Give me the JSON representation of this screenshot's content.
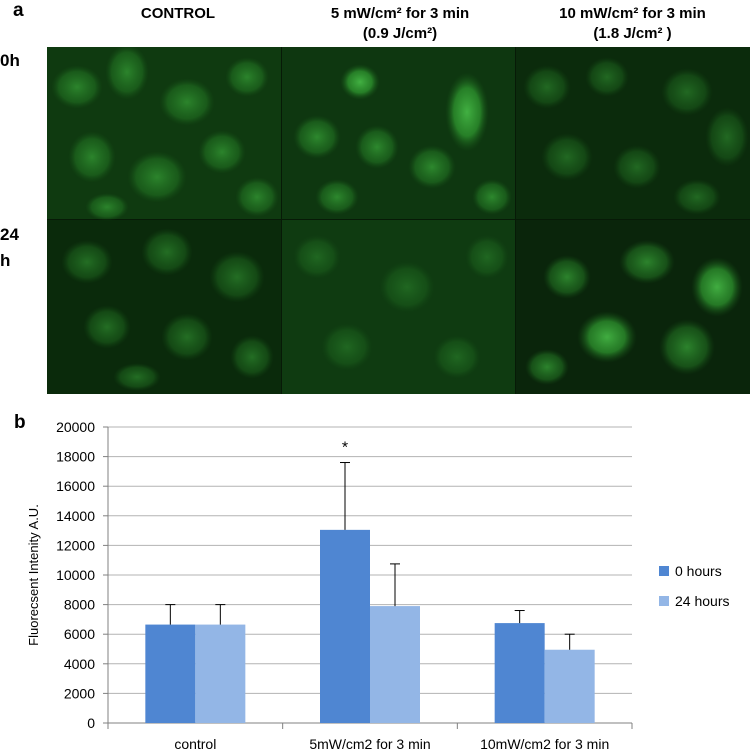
{
  "panel_a": {
    "label": "a",
    "columns": [
      {
        "line1": "CONTROL",
        "line2": ""
      },
      {
        "line1": "5 mW/cm² for 3 min",
        "line2": "(0.9 J/cm²)"
      },
      {
        "line1": "10 mW/cm² for 3 min",
        "line2": "(1.8 J/cm² )"
      }
    ],
    "rows": [
      "0h",
      "24 h"
    ],
    "image_color": "#2f9a2f"
  },
  "panel_b": {
    "label": "b"
  },
  "chart_data": {
    "type": "bar",
    "categories": [
      "control",
      "5mW/cm2 for 3 min",
      "10mW/cm2 for 3 min"
    ],
    "series": [
      {
        "name": "0 hours",
        "values": [
          6650,
          13050,
          6750
        ],
        "errors": [
          1350,
          4550,
          850
        ],
        "color": "#4f86d2"
      },
      {
        "name": "24 hours",
        "values": [
          6650,
          7900,
          4950
        ],
        "errors": [
          1350,
          2850,
          1050
        ],
        "color": "#93b6e6"
      }
    ],
    "ylabel": "Fluorecsent Intenity A.U.",
    "xlabel": "",
    "ylim": [
      0,
      20000
    ],
    "yticks": [
      0,
      2000,
      4000,
      6000,
      8000,
      10000,
      12000,
      14000,
      16000,
      18000,
      20000
    ],
    "grid": true,
    "legend_position": "right",
    "annotation": "*"
  }
}
